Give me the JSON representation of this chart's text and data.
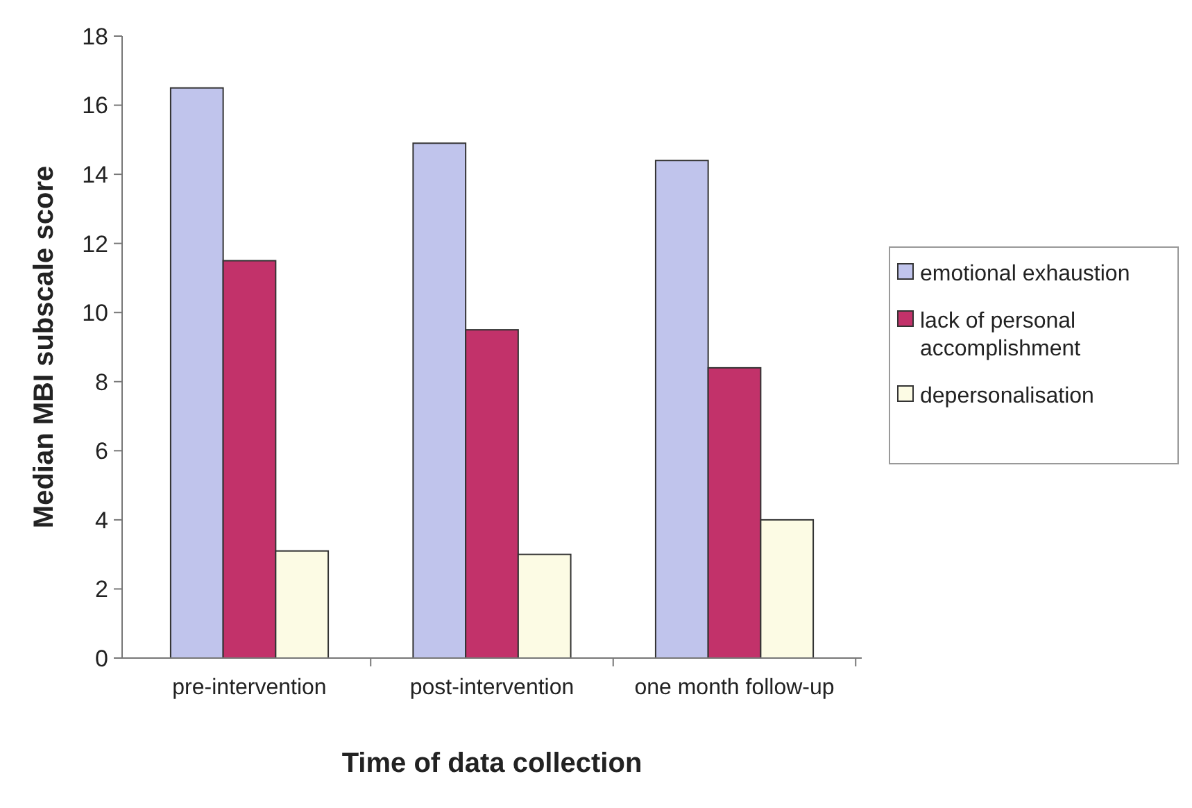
{
  "chart_data": {
    "type": "bar",
    "xlabel": "Time of data collection",
    "ylabel": "Median MBI subscale score",
    "categories": [
      "pre-intervention",
      "post-intervention",
      "one month follow-up"
    ],
    "series": [
      {
        "name": "emotional exhaustion",
        "color": "#c0c4ec",
        "values": [
          16.5,
          14.9,
          14.4
        ]
      },
      {
        "name": "lack of personal accomplishment",
        "color": "#c2326a",
        "values": [
          11.5,
          9.5,
          8.4
        ]
      },
      {
        "name": "depersonalisation",
        "color": "#fcfbe4",
        "values": [
          3.1,
          3.0,
          4.0
        ]
      }
    ],
    "ylim": [
      0,
      18
    ],
    "yticks": [
      0,
      2,
      4,
      6,
      8,
      10,
      12,
      14,
      16,
      18
    ],
    "grid": false,
    "legend": "right"
  }
}
